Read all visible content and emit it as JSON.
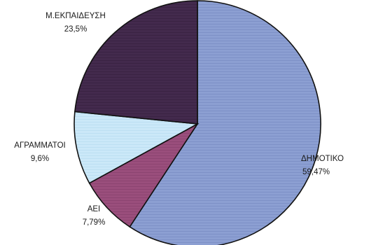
{
  "chart_data": {
    "type": "pie",
    "title": "",
    "slices": [
      {
        "name": "ΔΗΜΟΤΙΚΟ",
        "value": 59.47,
        "value_label": "59,47%",
        "color": "#8c9fd2",
        "stripe": "#7d90c6",
        "label_anchor": "start"
      },
      {
        "name": "ΑΕΙ",
        "value": 7.79,
        "value_label": "7,79%",
        "color": "#9a4e7c",
        "stripe": "#8c4471",
        "label_anchor": "middle"
      },
      {
        "name": "ΑΓΡΑΜΜΑΤΟΙ",
        "value": 9.6,
        "value_label": "9,6%",
        "color": "#cbe8f8",
        "stripe": "#bcdff2",
        "label_anchor": "middle"
      },
      {
        "name": "Μ.ΕΚΠΑΙΔΕΥΣΗ",
        "value": 23.5,
        "value_label": "23,5%",
        "color": "#432a4d",
        "stripe": "#3a2343",
        "label_anchor": "middle"
      }
    ],
    "start_angle_deg": 0,
    "direction": "clockwise",
    "legend": "none"
  }
}
